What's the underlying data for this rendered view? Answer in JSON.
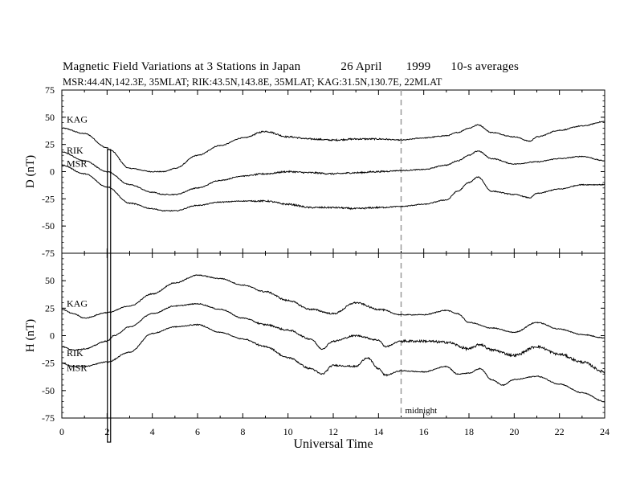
{
  "chart_data": {
    "type": "line",
    "title": "Magnetic Field Variations at 3 Stations in Japan",
    "date": "26 April",
    "year": "1999",
    "averaging": "10-s averages",
    "subtitle": "MSR:44.4N,142.3E, 35MLAT;   RIK:43.5N,143.8E, 35MLAT;   KAG:31.5N,130.7E, 22MLAT",
    "xlabel": "Universal Time",
    "xlim": [
      0,
      24
    ],
    "x_ticks": [
      "0",
      "2",
      "4",
      "6",
      "8",
      "10",
      "12",
      "14",
      "16",
      "18",
      "20",
      "22",
      "24"
    ],
    "annotation": "midnight",
    "midnight_x": 15,
    "panels": [
      {
        "ylabel": "D (nT)",
        "ylim": [
          -75,
          75
        ],
        "y_ticks": [
          "75",
          "50",
          "25",
          "0",
          "-25",
          "-50",
          "-75"
        ],
        "series": [
          {
            "name": "KAG",
            "x": [
              0,
              1,
              2,
              2.1,
              3,
              4,
              4.5,
              5,
              6,
              7,
              8,
              9,
              10,
              11,
              12,
              13,
              14,
              15,
              16,
              17,
              17.5,
              18,
              18.4,
              19,
              20,
              20.7,
              21,
              22,
              23,
              24
            ],
            "values": [
              40,
              35,
              22,
              20,
              3,
              0,
              0,
              3,
              15,
              24,
              31,
              37,
              32,
              30,
              29,
              30,
              30,
              29,
              31,
              33,
              36,
              40,
              43,
              36,
              32,
              28,
              32,
              38,
              42,
              46
            ]
          },
          {
            "name": "RIK",
            "x": [
              0,
              1,
              2,
              3,
              4,
              4.5,
              5,
              6,
              7,
              8,
              9,
              10,
              11,
              12,
              13,
              14,
              15,
              16,
              17,
              17.5,
              18,
              18.4,
              19,
              20,
              21,
              22,
              23,
              24
            ],
            "values": [
              18,
              10,
              0,
              -12,
              -19,
              -21,
              -21,
              -15,
              -8,
              -4,
              -2,
              0,
              -1,
              -2,
              -1,
              0,
              1,
              2,
              6,
              10,
              15,
              19,
              12,
              7,
              9,
              12,
              14,
              10
            ]
          },
          {
            "name": "MSR",
            "x": [
              0,
              1,
              2,
              3,
              4,
              4.5,
              5,
              6,
              7,
              8,
              9,
              10,
              11,
              12,
              13,
              14,
              15,
              16,
              17,
              17.5,
              18,
              18.4,
              19,
              20,
              20.7,
              21,
              22,
              23,
              24
            ],
            "values": [
              6,
              -2,
              -14,
              -29,
              -34,
              -36,
              -36,
              -31,
              -28,
              -27,
              -27,
              -30,
              -33,
              -33,
              -34,
              -33,
              -32,
              -30,
              -26,
              -18,
              -10,
              -5,
              -18,
              -21,
              -24,
              -20,
              -16,
              -12,
              -12
            ]
          }
        ]
      },
      {
        "ylabel": "H (nT)",
        "ylim": [
          -75,
          75
        ],
        "y_ticks": [
          "75",
          "50",
          "25",
          "0",
          "-25",
          "-50",
          "-75"
        ],
        "series": [
          {
            "name": "KAG",
            "x": [
              0,
              0.5,
              1,
              2,
              3,
              4,
              5,
              6,
              7,
              8,
              9,
              10,
              11,
              12,
              13,
              14,
              15,
              16,
              17,
              17.5,
              18,
              19,
              20,
              21,
              22,
              23,
              24
            ],
            "values": [
              24,
              20,
              16,
              21,
              27,
              38,
              48,
              55,
              52,
              46,
              40,
              32,
              24,
              20,
              30,
              24,
              19,
              19,
              23,
              20,
              12,
              7,
              3,
              12,
              6,
              1,
              -2
            ]
          },
          {
            "name": "RIK",
            "x": [
              0,
              0.5,
              1,
              2,
              2.3,
              3,
              4,
              5,
              6,
              7,
              8,
              9,
              10,
              11,
              11.5,
              12,
              13,
              14,
              14.3,
              15,
              16,
              17,
              18,
              18.5,
              19,
              20,
              21,
              22,
              23,
              24
            ],
            "values": [
              -10,
              -13,
              -12,
              -5,
              0,
              8,
              20,
              27,
              29,
              24,
              16,
              10,
              5,
              -3,
              -12,
              -5,
              0,
              -4,
              -10,
              -5,
              -5,
              -6,
              -12,
              -8,
              -13,
              -18,
              -10,
              -17,
              -24,
              -33
            ]
          },
          {
            "name": "MSR",
            "x": [
              0,
              0.5,
              1,
              2,
              3,
              4,
              5,
              6,
              7,
              8,
              9,
              10,
              11,
              11.5,
              12,
              13,
              13.5,
              14,
              14.3,
              15,
              16,
              17,
              17.5,
              18,
              18.5,
              19,
              19.5,
              20,
              21,
              22,
              23,
              24
            ],
            "values": [
              -25,
              -28,
              -28,
              -24,
              -15,
              2,
              8,
              10,
              3,
              -3,
              -10,
              -20,
              -30,
              -35,
              -27,
              -28,
              -20,
              -30,
              -36,
              -32,
              -33,
              -28,
              -35,
              -34,
              -30,
              -40,
              -45,
              -40,
              -37,
              -44,
              -52,
              -60
            ]
          }
        ]
      }
    ]
  }
}
